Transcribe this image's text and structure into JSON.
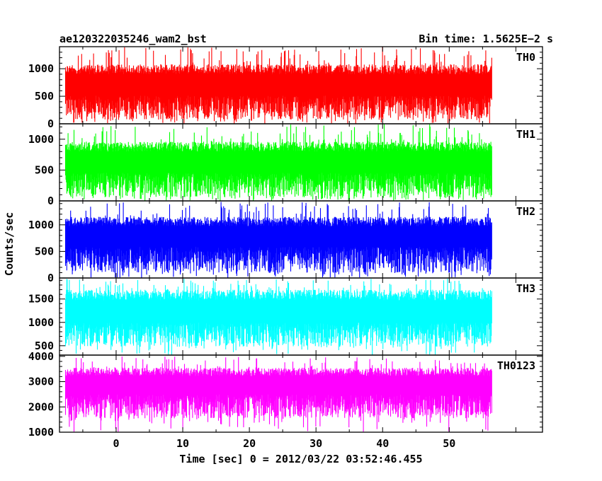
{
  "chart_data": {
    "type": "line",
    "title": "ae120322035246_wam2_bst",
    "bin_time_label": "Bin time: 1.5625E−2 s",
    "xlabel": "Time [sec] 0 = 2012/03/22 03:52:46.455",
    "ylabel": "Counts/sec",
    "xlim": [
      -8.5,
      64
    ],
    "x_ticks": [
      0,
      10,
      20,
      30,
      40,
      50
    ],
    "x_tick_labels": [
      "0",
      "10",
      "20",
      "30",
      "40",
      "50"
    ],
    "x_data_range": [
      -7.6,
      56.4
    ],
    "panels": [
      {
        "name": "TH0",
        "color": "#ff0000",
        "ylim": [
          0,
          1400
        ],
        "y_ticks": [
          0,
          500,
          1000
        ],
        "y_tick_labels": [
          "0",
          "500",
          "1000"
        ],
        "typical_range": [
          80,
          1080
        ],
        "spike_max": 1400,
        "mean": 560
      },
      {
        "name": "TH1",
        "color": "#00ff00",
        "ylim": [
          0,
          1250
        ],
        "y_ticks": [
          0,
          500,
          1000
        ],
        "y_tick_labels": [
          "0",
          "500",
          "1000"
        ],
        "typical_range": [
          60,
          960
        ],
        "spike_max": 1250,
        "mean": 500
      },
      {
        "name": "TH2",
        "color": "#0000ff",
        "ylim": [
          0,
          1450
        ],
        "y_ticks": [
          0,
          500,
          1000
        ],
        "y_tick_labels": [
          "0",
          "500",
          "1000"
        ],
        "typical_range": [
          100,
          1150
        ],
        "spike_max": 1450,
        "mean": 640
      },
      {
        "name": "TH3",
        "color": "#00ffff",
        "ylim": [
          300,
          1950
        ],
        "y_ticks": [
          500,
          1000,
          1500
        ],
        "y_tick_labels": [
          "500",
          "1000",
          "1500"
        ],
        "typical_range": [
          480,
          1700
        ],
        "spike_max": 1950,
        "mean": 1050
      },
      {
        "name": "TH0123",
        "color": "#ff00ff",
        "ylim": [
          1000,
          4050
        ],
        "y_ticks": [
          1000,
          2000,
          3000,
          4000
        ],
        "y_tick_labels": [
          "1000",
          "2000",
          "3000",
          "4000"
        ],
        "typical_range": [
          1550,
          3550
        ],
        "spike_max": 4000,
        "mean": 2600
      }
    ]
  }
}
